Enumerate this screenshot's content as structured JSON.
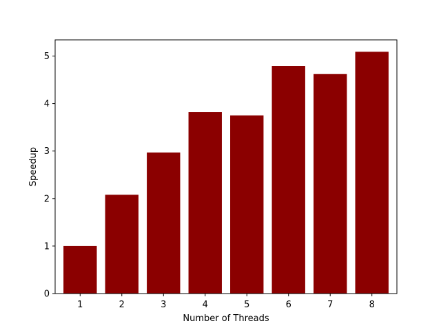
{
  "chart_data": {
    "type": "bar",
    "title": "",
    "xlabel": "Number of Threads",
    "ylabel": "Speedup",
    "categories": [
      "1",
      "2",
      "3",
      "4",
      "5",
      "6",
      "7",
      "8"
    ],
    "values": [
      1.0,
      2.08,
      2.97,
      3.82,
      3.75,
      4.79,
      4.62,
      5.09
    ],
    "ylim": [
      0,
      5.34
    ],
    "yticks": [
      "0",
      "1",
      "2",
      "3",
      "4",
      "5"
    ],
    "bar_color": "#8b0000",
    "grid": false,
    "legend": "none"
  }
}
